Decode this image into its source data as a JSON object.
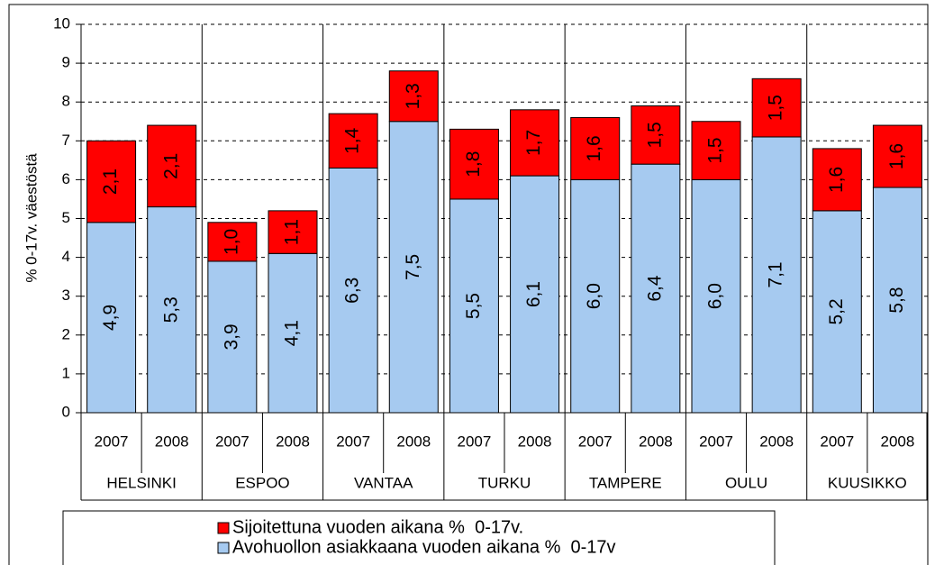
{
  "chart_data": {
    "type": "stacked_bar",
    "y_label": "% 0-17v. väestöstä",
    "categories": [
      "2007",
      "2008",
      "2007",
      "2008",
      "2007",
      "2008",
      "2007",
      "2008",
      "2007",
      "2008",
      "2007",
      "2008",
      "2007",
      "2008"
    ],
    "groups": [
      "HELSINKI",
      "ESPOO",
      "VANTAA",
      "TURKU",
      "TAMPERE",
      "OULU",
      "KUUSIKKO"
    ],
    "series": [
      {
        "name": "Avohuollon asiakkaana vuoden aikana %  0-17v",
        "color": "#a6caf0",
        "values": [
          4.9,
          5.3,
          3.9,
          4.1,
          6.3,
          7.5,
          5.5,
          6.1,
          6.0,
          6.4,
          6.0,
          7.1,
          5.2,
          5.8
        ],
        "value_labels": [
          "4,9",
          "5,3",
          "3,9",
          "4,1",
          "6,3",
          "7,5",
          "5,5",
          "6,1",
          "6,0",
          "6,4",
          "6,0",
          "7,1",
          "5,2",
          "5,8"
        ]
      },
      {
        "name": "Sijoitettuna vuoden aikana %  0-17v.",
        "color": "#ff0000",
        "values": [
          2.1,
          2.1,
          1.0,
          1.1,
          1.4,
          1.3,
          1.8,
          1.7,
          1.6,
          1.5,
          1.5,
          1.5,
          1.6,
          1.6
        ],
        "value_labels": [
          "2,1",
          "2,1",
          "1,0",
          "1,1",
          "1,4",
          "1,3",
          "1,8",
          "1,7",
          "1,6",
          "1,5",
          "1,5",
          "1,5",
          "1,6",
          "1,6"
        ]
      }
    ],
    "ylim": [
      0,
      10
    ],
    "yticks": [
      0,
      1,
      2,
      3,
      4,
      5,
      6,
      7,
      8,
      9,
      10
    ],
    "grid": true
  }
}
